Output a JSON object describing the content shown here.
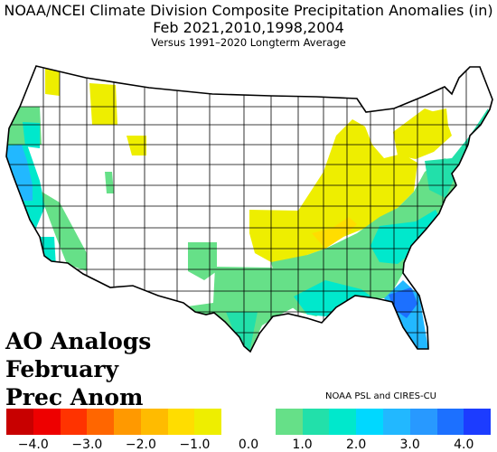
{
  "title": {
    "line1": "NOAA/NCEI Climate Division Composite Precipitation Anomalies (in)",
    "line2": "Feb   2021,2010,1998,2004",
    "line3": "Versus 1991–2020 Longterm Average"
  },
  "overlay": {
    "line1": "AO Analogs",
    "line2": "February",
    "line3": "Prec Anom"
  },
  "credit": "NOAA PSL and CIRES-CU",
  "legend": {
    "colors": [
      "#c80000",
      "#ee0000",
      "#ff3300",
      "#ff6600",
      "#ff9900",
      "#ffbb00",
      "#ffdd00",
      "#eeee00",
      "#ffffff",
      "#ffffff",
      "#66e088",
      "#22e0aa",
      "#00e8cc",
      "#00d8ff",
      "#22b8ff",
      "#2899ff",
      "#1c70ff",
      "#1c3cff"
    ],
    "ticks": [
      "−4.0",
      "−3.0",
      "−2.0",
      "−1.0",
      "0.0",
      "1.0",
      "2.0",
      "3.0",
      "4.0"
    ]
  },
  "map_colors": {
    "outline": "#000000",
    "neutral": "#ffffff",
    "dry_light": "#eeee00",
    "dry_moderate": "#ffdd00",
    "wet_light": "#66e088",
    "wet_moderate": "#22e0aa",
    "wet_strong": "#00e8cc",
    "wet_heavy": "#22b8ff",
    "wet_very_heavy": "#1c70ff"
  }
}
